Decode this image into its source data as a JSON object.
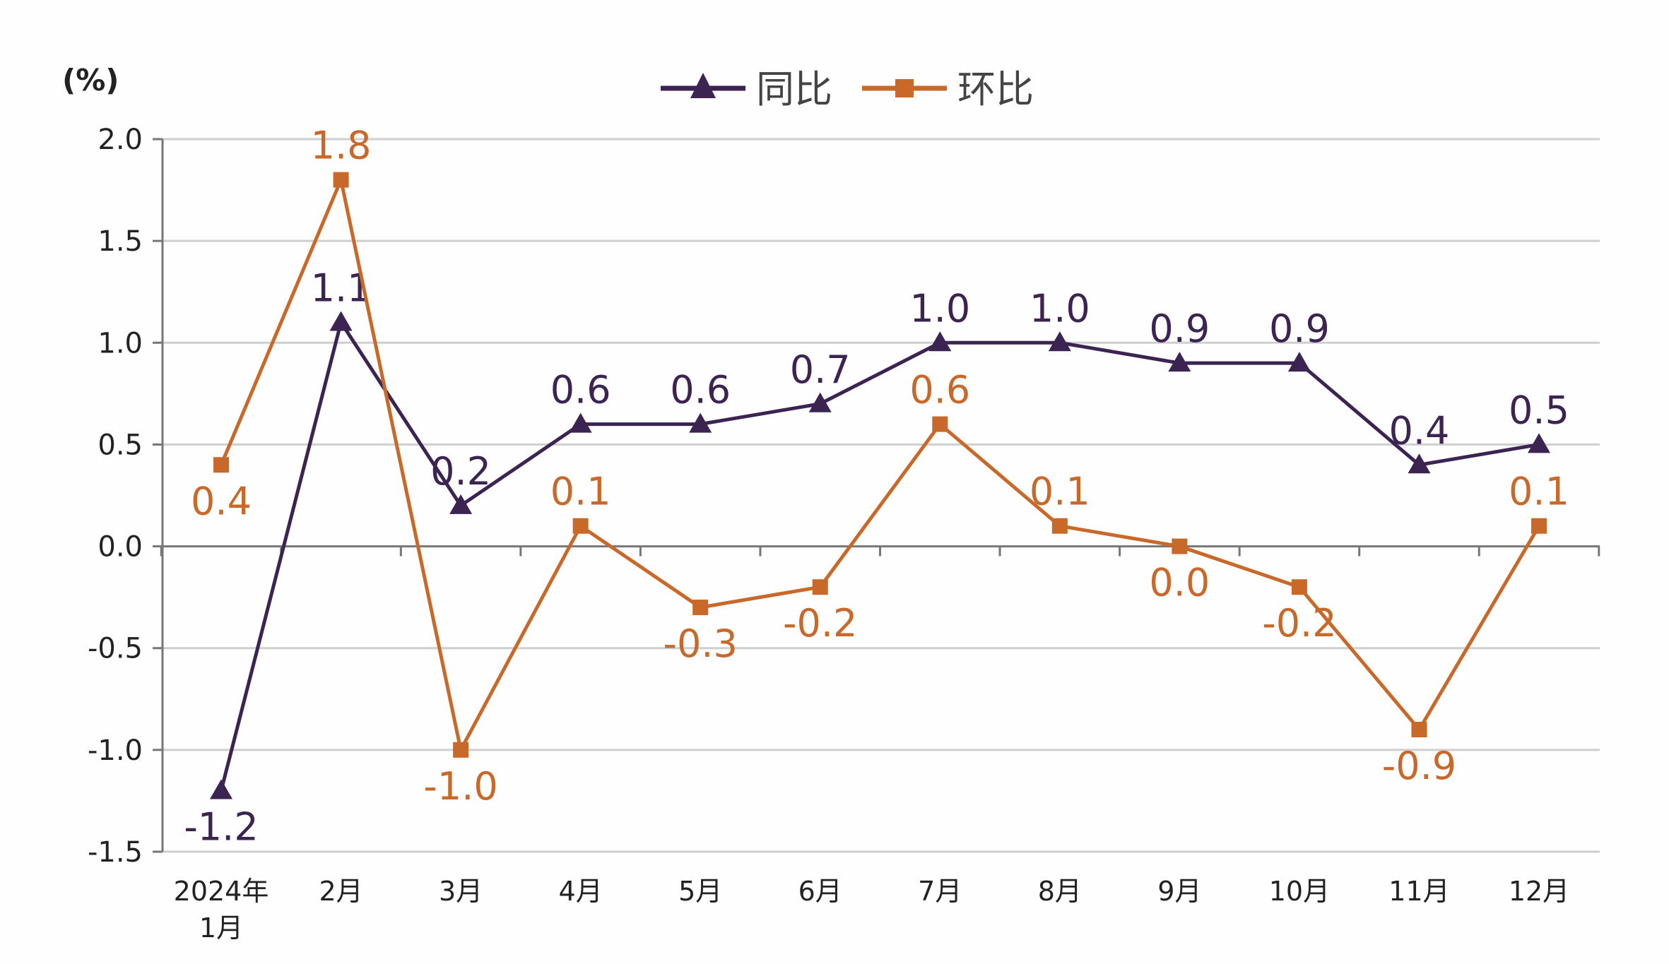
{
  "chart_data": {
    "type": "line",
    "unit_label": "(%)",
    "categories": [
      "2024年\n1月",
      "2月",
      "3月",
      "4月",
      "5月",
      "6月",
      "7月",
      "8月",
      "9月",
      "10月",
      "11月",
      "12月"
    ],
    "ylim": [
      -1.5,
      2.0
    ],
    "yticks": [
      "2.0",
      "1.5",
      "1.0",
      "0.5",
      "0.0",
      "-0.5",
      "-1.0",
      "-1.5"
    ],
    "grid": true,
    "legend_position": "top-center",
    "series": [
      {
        "name": "同比",
        "color": "#3b2352",
        "marker": "triangle",
        "values": [
          -1.2,
          1.1,
          0.2,
          0.6,
          0.6,
          0.7,
          1.0,
          1.0,
          0.9,
          0.9,
          0.4,
          0.5
        ]
      },
      {
        "name": "环比",
        "color": "#c8692a",
        "marker": "square",
        "values": [
          0.4,
          1.8,
          -1.0,
          0.1,
          -0.3,
          -0.2,
          0.6,
          0.1,
          0.0,
          -0.2,
          -0.9,
          0.1
        ]
      }
    ]
  }
}
